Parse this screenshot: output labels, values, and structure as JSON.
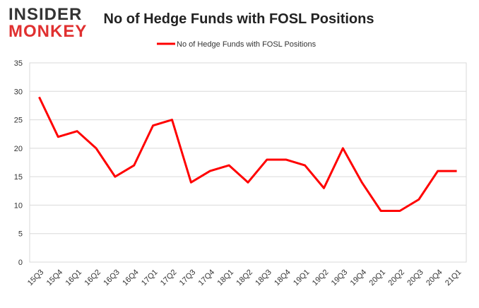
{
  "logo": {
    "line1": "INSIDER",
    "line2": "MONKEY"
  },
  "chart_data": {
    "type": "line",
    "title": "No of Hedge Funds with FOSL Positions",
    "categories": [
      "15Q3",
      "15Q4",
      "16Q1",
      "16Q2",
      "16Q3",
      "16Q4",
      "17Q1",
      "17Q2",
      "17Q3",
      "17Q4",
      "18Q1",
      "18Q2",
      "18Q3",
      "18Q4",
      "19Q1",
      "19Q2",
      "19Q3",
      "19Q4",
      "20Q1",
      "20Q2",
      "20Q3",
      "20Q4",
      "21Q1"
    ],
    "series": [
      {
        "name": "No of Hedge Funds with FOSL Positions",
        "color": "#ff0000",
        "values": [
          29,
          22,
          23,
          20,
          15,
          17,
          24,
          25,
          14,
          16,
          17,
          14,
          18,
          18,
          17,
          13,
          20,
          14,
          9,
          9,
          11,
          16,
          16
        ]
      }
    ],
    "ylim": [
      0,
      35
    ],
    "yticks": [
      0,
      5,
      10,
      15,
      20,
      25,
      30,
      35
    ],
    "grid": true,
    "legend": "top"
  }
}
